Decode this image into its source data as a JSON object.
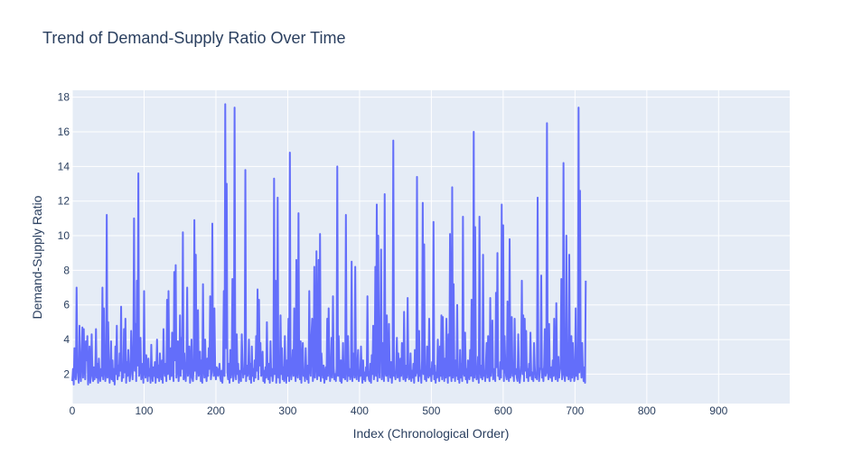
{
  "chart_data": {
    "type": "line",
    "title": "Trend of Demand-Supply Ratio Over Time",
    "xlabel": "Index (Chronological Order)",
    "ylabel": "Demand-Supply Ratio",
    "xlim": [
      0,
      999
    ],
    "ylim": [
      0.3,
      18.4
    ],
    "grid": true,
    "line_color": "#636efa",
    "plot_bgcolor": "#e5ecf6",
    "x_ticks": [
      0,
      100,
      200,
      300,
      400,
      500,
      600,
      700,
      800,
      900
    ],
    "x_tick_labels": [
      "0",
      "100",
      "200",
      "300",
      "400",
      "500",
      "600",
      "700",
      "800",
      "900"
    ],
    "y_ticks": [
      2,
      4,
      6,
      8,
      10,
      12,
      14,
      16,
      18
    ],
    "y_tick_labels": [
      "2",
      "4",
      "6",
      "8",
      "10",
      "12",
      "14",
      "16",
      "18"
    ],
    "series": [
      {
        "x_start": 0,
        "x_step": 1,
        "values": [
          1.6,
          2.3,
          1.4,
          3.5,
          2.1,
          1.7,
          7.0,
          2.4,
          1.9,
          1.5,
          4.8,
          2.2,
          1.6,
          3.1,
          4.7,
          1.8,
          4.6,
          2.5,
          1.7,
          3.9,
          2.8,
          4.2,
          1.4,
          2.0,
          3.6,
          1.5,
          1.9,
          4.3,
          2.2,
          1.6,
          2.4,
          1.7,
          2.1,
          4.6,
          1.8,
          2.6,
          1.5,
          2.9,
          2.0,
          1.6,
          2.3,
          1.9,
          7.0,
          1.7,
          5.8,
          2.5,
          1.6,
          2.2,
          11.2,
          1.8,
          5.0,
          2.4,
          1.5,
          2.1,
          3.9,
          1.7,
          2.8,
          1.6,
          2.3,
          1.4,
          3.6,
          2.0,
          4.8,
          1.7,
          2.5,
          1.9,
          3.2,
          2.2,
          5.9,
          1.6,
          2.4,
          1.8,
          4.6,
          2.1,
          5.2,
          1.5,
          2.7,
          1.9,
          3.4,
          2.3,
          1.6,
          2.0,
          4.5,
          2.8,
          1.7,
          3.1,
          11.0,
          2.2,
          4.9,
          1.6,
          7.4,
          2.5,
          13.6,
          1.9,
          2.3,
          4.1,
          1.7,
          2.0,
          2.6,
          1.5,
          6.8,
          2.2,
          1.8,
          3.1,
          2.4,
          1.6,
          2.9,
          1.9,
          2.3,
          1.5,
          3.7,
          2.0,
          1.6,
          2.4,
          1.9,
          2.7,
          1.5,
          2.2,
          4.0,
          1.8,
          2.5,
          1.6,
          3.2,
          2.1,
          1.7,
          2.8,
          1.5,
          4.6,
          2.3,
          1.9,
          2.6,
          1.6,
          6.3,
          2.0,
          6.8,
          2.4,
          1.7,
          3.5,
          1.9,
          4.4,
          2.2,
          1.6,
          7.9,
          2.8,
          8.3,
          1.8,
          2.5,
          3.9,
          1.6,
          2.2,
          5.4,
          1.9,
          4.1,
          2.3,
          10.2,
          1.7,
          3.2,
          2.0,
          1.6,
          2.7,
          7.0,
          1.9,
          2.4,
          3.6,
          1.5,
          2.1,
          4.0,
          1.8,
          1.6,
          2.3,
          10.9,
          2.2,
          8.9,
          1.7,
          2.6,
          5.7,
          1.9,
          2.2,
          3.3,
          1.6,
          2.8,
          1.5,
          7.2,
          2.4,
          1.8,
          4.0,
          2.1,
          1.6,
          2.9,
          1.9,
          3.5,
          2.3,
          6.5,
          1.7,
          2.1,
          10.7,
          2.6,
          1.9,
          5.8,
          2.2,
          1.7,
          2.4,
          2.3,
          1.9,
          2.1,
          2.6,
          1.8,
          1.6,
          2.2,
          1.5,
          2.4,
          6.8,
          1.9,
          17.6,
          3.5,
          13.0,
          2.1,
          1.7,
          2.6,
          1.5,
          3.4,
          1.8,
          2.2,
          7.5,
          1.6,
          1.9,
          17.4,
          2.4,
          1.7,
          4.3,
          2.0,
          2.6,
          1.5,
          2.2,
          1.9,
          1.6,
          4.3,
          2.8,
          1.8,
          2.3,
          2.0,
          13.8,
          1.6,
          2.5,
          1.9,
          2.2,
          4.0,
          1.7,
          2.6,
          1.5,
          3.6,
          1.9,
          2.3,
          1.6,
          2.8,
          1.8,
          4.2,
          2.2,
          6.9,
          1.7,
          6.3,
          2.5,
          3.8,
          1.9,
          2.0,
          3.3,
          1.6,
          2.2,
          1.5,
          2.4,
          1.8,
          5.0,
          2.1,
          1.7,
          2.6,
          1.5,
          3.9,
          1.9,
          2.3,
          1.6,
          2.1,
          13.3,
          2.0,
          7.4,
          1.5,
          2.3,
          12.2,
          1.8,
          2.6,
          1.5,
          5.4,
          2.0,
          3.5,
          1.7,
          2.4,
          1.6,
          4.2,
          2.1,
          1.5,
          2.8,
          1.9,
          5.2,
          1.6,
          14.8,
          2.2,
          1.7,
          2.5,
          3.4,
          1.9,
          5.8,
          2.3,
          1.6,
          8.6,
          2.0,
          1.8,
          11.3,
          2.4,
          1.7,
          3.9,
          1.5,
          2.6,
          3.8,
          1.9,
          2.2,
          1.6,
          3.5,
          2.0,
          1.7,
          2.5,
          1.5,
          6.8,
          2.3,
          1.9,
          4.2,
          5.2,
          1.6,
          2.1,
          8.2,
          1.8,
          2.6,
          9.1,
          1.7,
          2.2,
          8.6,
          1.9,
          10.1,
          1.6,
          3.2,
          2.3,
          1.8,
          2.5,
          1.5,
          2.0,
          2.4,
          1.7,
          5.2,
          1.9,
          5.8,
          2.6,
          1.6,
          2.2,
          4.1,
          1.8,
          6.5,
          2.4,
          1.7,
          2.0,
          1.6,
          2.3,
          14.0,
          1.9,
          4.2,
          2.2,
          1.6,
          2.8,
          1.5,
          2.1,
          3.8,
          1.8,
          2.4,
          1.7,
          11.2,
          2.5,
          1.6,
          4.2,
          1.9,
          2.3,
          1.7,
          2.0,
          8.5,
          1.6,
          3.2,
          2.4,
          1.8,
          8.2,
          2.1,
          1.7,
          2.6,
          3.4,
          1.6,
          2.2,
          1.9,
          3.6,
          2.3,
          1.5,
          2.8,
          1.7,
          2.1,
          1.6,
          2.4,
          1.9,
          6.5,
          2.2,
          1.7,
          1.6,
          2.6,
          1.5,
          3.1,
          2.0,
          4.8,
          1.7,
          2.3,
          8.2,
          1.9,
          11.8,
          1.6,
          10.0,
          2.5,
          1.8,
          4.5,
          9.2,
          1.7,
          3.8,
          2.4,
          1.6,
          12.4,
          2.1,
          1.9,
          5.4,
          2.2,
          1.6,
          4.9,
          2.3,
          1.8,
          2.7,
          1.5,
          2.2,
          15.5,
          1.9,
          2.1,
          1.7,
          2.6,
          4.1,
          1.8,
          3.2,
          2.2,
          1.6,
          2.9,
          1.9,
          3.8,
          2.4,
          1.7,
          5.6,
          2.0,
          1.6,
          2.5,
          1.8,
          6.4,
          2.3,
          1.7,
          1.9,
          3.2,
          1.6,
          2.2,
          1.8,
          2.6,
          1.5,
          3.4,
          1.9,
          2.1,
          13.4,
          2.3,
          1.6,
          4.5,
          1.9,
          2.2,
          1.5,
          2.8,
          11.9,
          2.0,
          9.5,
          1.7,
          2.4,
          1.6,
          3.6,
          2.1,
          1.8,
          5.2,
          1.9,
          2.3,
          1.6,
          2.7,
          2.0,
          10.8,
          1.7,
          2.5,
          1.5,
          2.1,
          1.8,
          4.0,
          2.2,
          1.6,
          3.6,
          1.9,
          5.4,
          1.7,
          5.3,
          2.4,
          1.6,
          2.9,
          1.8,
          5.2,
          2.3,
          1.5,
          4.3,
          1.9,
          10.1,
          2.2,
          1.6,
          12.8,
          1.8,
          7.2,
          2.3,
          1.6,
          2.8,
          1.9,
          6.0,
          1.7,
          2.2,
          1.5,
          3.4,
          1.8,
          2.6,
          1.6,
          11.1,
          2.1,
          1.9,
          4.4,
          1.7,
          2.3,
          1.5,
          2.8,
          2.0,
          1.7,
          3.4,
          1.9,
          6.3,
          2.2,
          1.6,
          16.0,
          1.8,
          10.5,
          2.4,
          1.7,
          1.9,
          3.0,
          1.5,
          11.1,
          2.3,
          1.8,
          2.5,
          1.7,
          8.9,
          1.9,
          2.2,
          1.6,
          2.7,
          3.8,
          1.8,
          4.2,
          2.1,
          1.6,
          6.4,
          1.9,
          2.5,
          5.1,
          1.7,
          2.3,
          2.0,
          1.6,
          6.7,
          2.4,
          9.0,
          1.9,
          2.2,
          1.7,
          2.7,
          1.8,
          11.8,
          2.3,
          10.6,
          1.6,
          4.2,
          2.5,
          1.9,
          1.7,
          6.2,
          2.1,
          1.6,
          9.8,
          1.8,
          2.4,
          5.3,
          1.9,
          2.2,
          1.6,
          5.2,
          2.0,
          2.3,
          1.8,
          1.6,
          4.3,
          2.2,
          1.5,
          1.9,
          2.5,
          7.4,
          2.0,
          5.4,
          1.6,
          5.2,
          2.2,
          4.5,
          1.8,
          2.3,
          1.6,
          2.6,
          1.9,
          4.4,
          2.2,
          1.7,
          2.1,
          1.6,
          3.8,
          2.4,
          1.8,
          2.0,
          1.7,
          12.2,
          2.5,
          1.6,
          2.2,
          2.4,
          7.7,
          1.8,
          2.3,
          1.6,
          2.5,
          4.6,
          1.9,
          2.1,
          16.5,
          2.3,
          1.7,
          4.9,
          2.0,
          1.8,
          2.4,
          1.6,
          2.8,
          1.9,
          5.2,
          2.2,
          1.7,
          6.1,
          2.3,
          1.6,
          3.0,
          1.8,
          2.2,
          2.5,
          7.5,
          1.7,
          2.1,
          14.2,
          2.0,
          1.6,
          2.3,
          10.0,
          1.9,
          2.7,
          1.7,
          8.9,
          2.2,
          1.6,
          4.2,
          1.8,
          3.8,
          2.4,
          1.6,
          2.0,
          5.8,
          1.9,
          2.6,
          1.7,
          17.4,
          2.1,
          12.6,
          2.8,
          1.8,
          3.8,
          2.2,
          1.6,
          2.4,
          1.5,
          7.4
        ]
      }
    ]
  }
}
